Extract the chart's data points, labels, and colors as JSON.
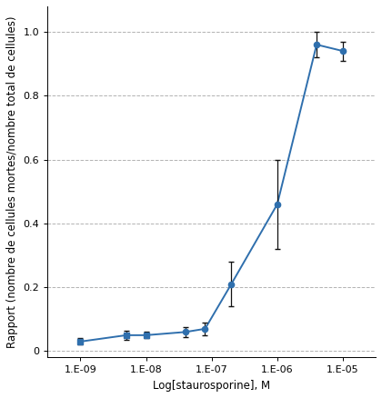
{
  "x_values_log": [
    -9.0,
    -8.3,
    -8.0,
    -7.4,
    -7.1,
    -6.7,
    -6.0,
    -5.4,
    -5.0
  ],
  "y_values": [
    0.03,
    0.05,
    0.05,
    0.06,
    0.07,
    0.21,
    0.46,
    0.96,
    0.94
  ],
  "y_err": [
    0.01,
    0.015,
    0.01,
    0.015,
    0.02,
    0.07,
    0.14,
    0.04,
    0.03
  ],
  "marker_styles": [
    "s",
    "s",
    "s",
    "o",
    "o",
    "o",
    "o",
    "o",
    "o"
  ],
  "line_color": "#2f6fad",
  "marker_color": "#2f6fad",
  "marker_size": 4.5,
  "line_width": 1.4,
  "xlabel": "Log[staurosporine], M",
  "ylabel": "Rapport (nombre de cellules mortes/nombre total de cellules)",
  "xlim_log": [
    -9.5,
    -4.5
  ],
  "ylim": [
    -0.02,
    1.08
  ],
  "yticks": [
    0.0,
    0.2,
    0.4,
    0.6,
    0.8,
    1.0
  ],
  "ytick_labels": [
    "0",
    "0.2",
    "0.4",
    "0.6",
    "0.8",
    "1.0"
  ],
  "xtick_labels": [
    "1.E-09",
    "1.E-08",
    "1.E-07",
    "1.E-06",
    "1.E-05"
  ],
  "xtick_positions_log": [
    -9,
    -8,
    -7,
    -6,
    -5
  ],
  "grid_color": "#aaaaaa",
  "grid_linestyle": "--",
  "background_color": "#ffffff",
  "label_fontsize": 8.5,
  "tick_fontsize": 8,
  "capsize": 2.5,
  "elinewidth": 0.9,
  "ecolor": "#111111"
}
